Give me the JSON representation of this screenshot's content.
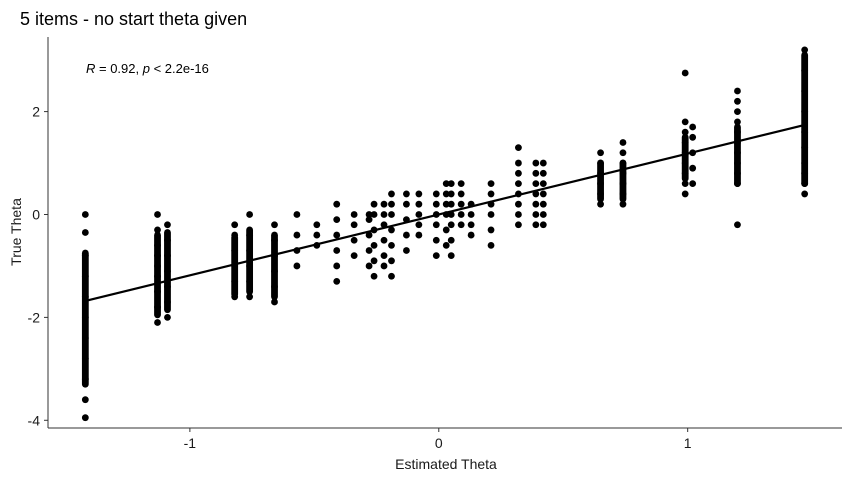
{
  "chart_data": {
    "type": "scatter",
    "title": "5 items - no start theta given",
    "xlabel": "Estimated Theta",
    "ylabel": "True Theta",
    "xlim": [
      -1.57,
      1.62
    ],
    "ylim": [
      -4.15,
      3.45
    ],
    "x_ticks": [
      -1,
      0,
      1
    ],
    "y_ticks": [
      -4,
      -2,
      0,
      2
    ],
    "x_tick_labels": [
      "-1",
      "0",
      "1"
    ],
    "y_tick_labels": [
      "-4",
      "-2",
      "0",
      "2"
    ],
    "grid": false,
    "annotation": {
      "r_symbol": "R",
      "r_value": " = 0.92, ",
      "p_symbol": "p",
      "p_value": " < 2.2e-16"
    },
    "colors": {
      "points": "#000000",
      "line": "#000000",
      "axis": "#333333"
    },
    "regression_line": {
      "x": [
        -1.42,
        1.47
      ],
      "y": [
        -1.68,
        1.74
      ]
    },
    "series": [
      {
        "points": [
          {
            "x": -1.42,
            "y": [
              -3.95,
              -3.6,
              -3.2,
              -2.8,
              -2.4,
              -2.0,
              -1.6,
              -1.2,
              -0.8,
              -0.35,
              0.0
            ],
            "dense": [
              -3.3,
              -0.75
            ]
          },
          {
            "x": -1.13,
            "y": [
              -2.1,
              -1.8,
              -1.5,
              -1.2,
              -1.0,
              -0.8,
              -0.6,
              -0.3,
              0.0
            ],
            "dense": [
              -1.95,
              -0.4
            ]
          },
          {
            "x": -1.09,
            "y": [
              -2.0,
              -1.7,
              -1.4,
              -1.1,
              -0.8,
              -0.5,
              -0.2
            ],
            "dense": [
              -1.85,
              -0.35
            ]
          },
          {
            "x": -0.82,
            "y": [
              -1.6,
              -1.3,
              -1.0,
              -0.7,
              -0.4,
              -0.2
            ],
            "dense": [
              -1.55,
              -0.45
            ]
          },
          {
            "x": -0.76,
            "y": [
              -1.6,
              -1.3,
              -1.0,
              -0.7,
              -0.4,
              0.0
            ],
            "dense": [
              -1.5,
              -0.3
            ]
          },
          {
            "x": -0.66,
            "y": [
              -1.7,
              -1.4,
              -1.1,
              -0.8,
              -0.5,
              -0.2
            ],
            "dense": [
              -1.6,
              -0.4
            ]
          },
          {
            "x": -0.57,
            "y": [
              -1.0,
              -0.7,
              -0.4,
              0.0
            ]
          },
          {
            "x": -0.49,
            "y": [
              -0.6,
              -0.4,
              -0.2
            ]
          },
          {
            "x": -0.41,
            "y": [
              -1.3,
              -1.0,
              -0.7,
              -0.4,
              -0.1,
              0.2
            ]
          },
          {
            "x": -0.34,
            "y": [
              -0.8,
              -0.5,
              -0.2,
              0.0
            ]
          },
          {
            "x": -0.28,
            "y": [
              -1.0,
              -0.7,
              -0.4,
              -0.1,
              0.0
            ]
          },
          {
            "x": -0.26,
            "y": [
              -1.2,
              -0.9,
              -0.6,
              -0.3,
              0.0,
              0.2
            ]
          },
          {
            "x": -0.22,
            "y": [
              -1.0,
              -0.8,
              -0.5,
              -0.2,
              0.0,
              0.2
            ]
          },
          {
            "x": -0.19,
            "y": [
              -1.2,
              -0.9,
              -0.6,
              -0.3,
              0.0,
              0.2,
              0.4
            ]
          },
          {
            "x": -0.13,
            "y": [
              -0.7,
              -0.4,
              -0.1,
              0.2,
              0.4
            ]
          },
          {
            "x": -0.08,
            "y": [
              -0.4,
              -0.2,
              0.0,
              0.2,
              0.4
            ]
          },
          {
            "x": -0.01,
            "y": [
              -0.8,
              -0.5,
              -0.2,
              0.0,
              0.2,
              0.4
            ]
          },
          {
            "x": 0.03,
            "y": [
              -0.6,
              -0.3,
              0.0,
              0.2,
              0.4,
              0.6
            ]
          },
          {
            "x": 0.05,
            "y": [
              -0.8,
              -0.5,
              -0.2,
              0.0,
              0.2,
              0.4,
              0.6
            ]
          },
          {
            "x": 0.09,
            "y": [
              -0.2,
              0.0,
              0.2,
              0.4,
              0.6
            ]
          },
          {
            "x": 0.13,
            "y": [
              -0.4,
              -0.2,
              0.0,
              0.2
            ]
          },
          {
            "x": 0.21,
            "y": [
              -0.6,
              -0.3,
              0.0,
              0.2,
              0.4,
              0.6
            ]
          },
          {
            "x": 0.32,
            "y": [
              -0.2,
              0.0,
              0.2,
              0.4,
              0.6,
              0.8,
              1.0,
              1.3
            ]
          },
          {
            "x": 0.39,
            "y": [
              -0.2,
              0.0,
              0.2,
              0.4,
              0.6,
              0.8,
              1.0
            ]
          },
          {
            "x": 0.42,
            "y": [
              -0.2,
              0.0,
              0.2,
              0.4,
              0.6,
              0.8,
              1.0
            ]
          },
          {
            "x": 0.65,
            "y": [
              0.2,
              0.4,
              0.6,
              0.8,
              1.0,
              1.2
            ],
            "dense": [
              0.3,
              1.0
            ]
          },
          {
            "x": 0.74,
            "y": [
              0.2,
              0.4,
              0.6,
              0.8,
              1.0,
              1.2,
              1.4
            ],
            "dense": [
              0.3,
              1.0
            ]
          },
          {
            "x": 0.99,
            "y": [
              0.4,
              0.6,
              0.8,
              1.0,
              1.2,
              1.4,
              1.6,
              1.8,
              2.75
            ],
            "dense": [
              0.7,
              1.5
            ]
          },
          {
            "x": 1.02,
            "y": [
              0.6,
              0.9,
              1.2,
              1.5,
              1.7
            ]
          },
          {
            "x": 1.2,
            "y": [
              -0.2,
              0.6,
              0.8,
              1.0,
              1.2,
              1.4,
              1.6,
              1.8,
              2.0,
              2.2,
              2.4
            ],
            "dense": [
              0.6,
              1.7
            ]
          },
          {
            "x": 1.47,
            "y": [
              0.4,
              0.6,
              0.8,
              1.0,
              1.3,
              1.6,
              2.0,
              2.4,
              2.8,
              3.2
            ],
            "dense": [
              0.6,
              3.1
            ]
          }
        ]
      }
    ]
  }
}
